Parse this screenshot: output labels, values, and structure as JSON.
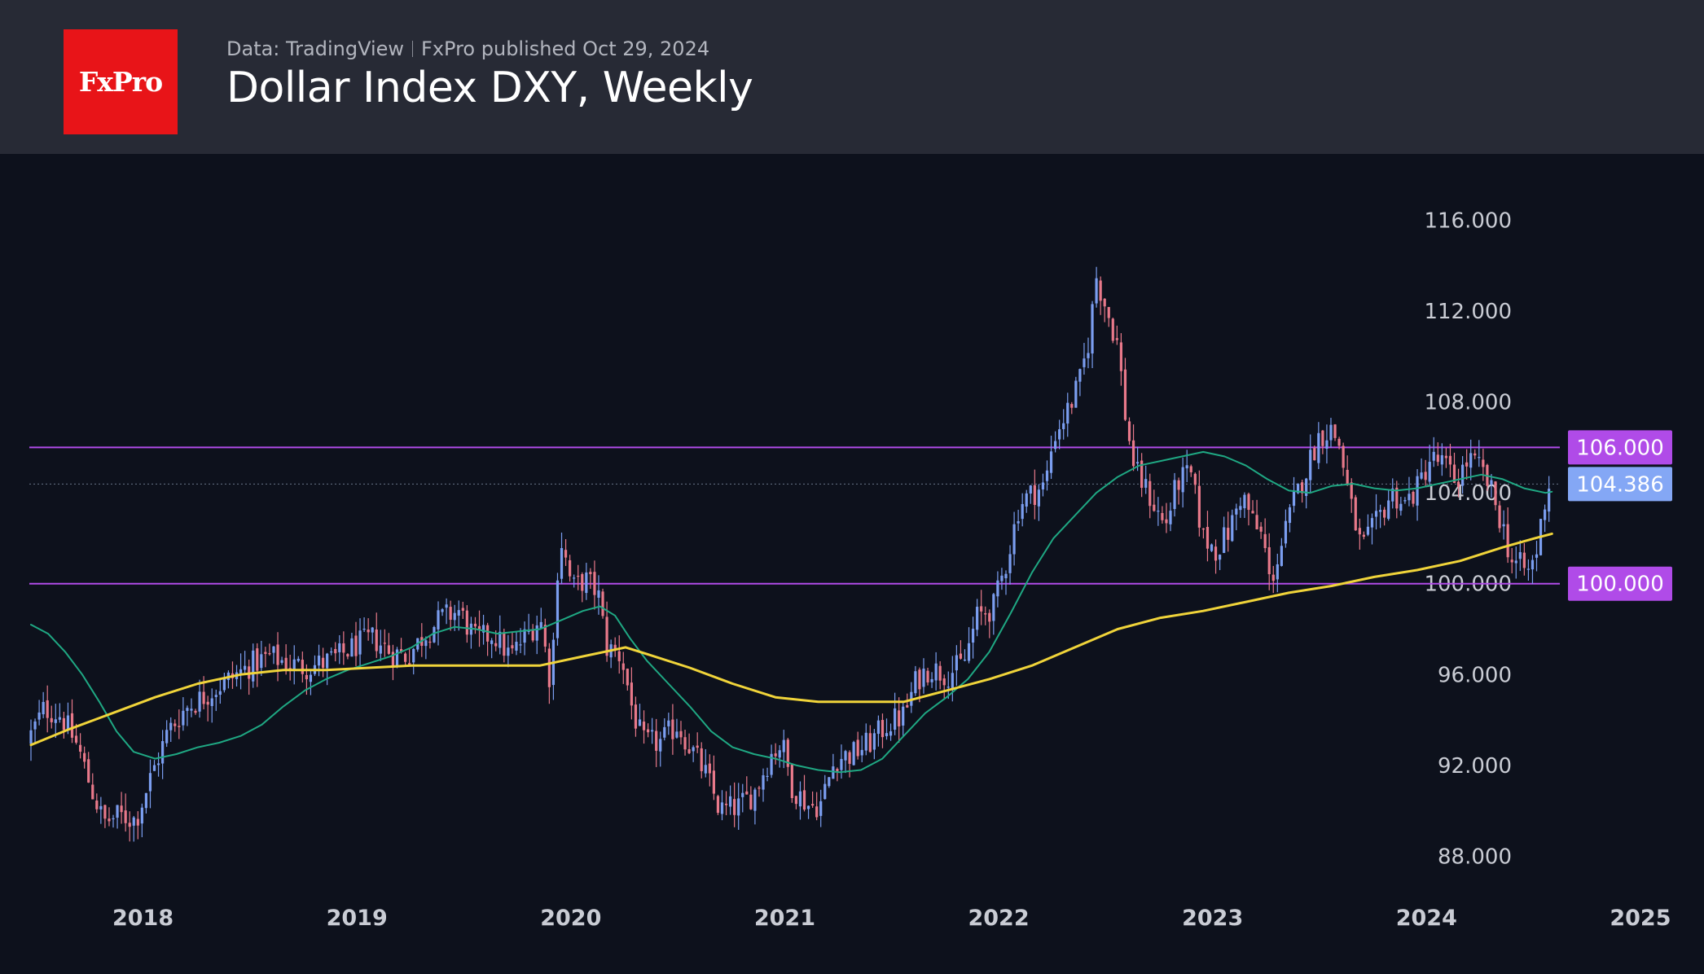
{
  "header": {
    "logo_text": "FxPro",
    "source": "Data: TradingView",
    "published": "FxPro published Oct 29, 2024",
    "title": "Dollar Index DXY, Weekly"
  },
  "colors": {
    "background": "#0d111c",
    "header_bg": "#272a35",
    "logo_bg": "#e81418",
    "candle_up": "#7b9ef0",
    "candle_down": "#e8798a",
    "ma_fast": "#1fa883",
    "ma_slow": "#f0d43a",
    "level_line": "#b04be8",
    "level_label_bg": "#b04be8",
    "current_label_bg": "#84a7f5"
  },
  "chart_data": {
    "type": "candlestick",
    "timeframe": "weekly",
    "y_axis": {
      "range": [
        86.8,
        118.2
      ],
      "ticks": [
        88,
        92,
        96,
        100,
        104,
        108,
        112,
        116
      ],
      "tick_labels": [
        "88.000",
        "92.000",
        "96.000",
        "100.000",
        "104.000",
        "108.000",
        "112.000",
        "116.000"
      ]
    },
    "x_axis": {
      "range": [
        2017.72,
        2025.4
      ],
      "ticks": [
        2018,
        2019,
        2020,
        2021,
        2022,
        2023,
        2024,
        2025
      ],
      "tick_labels": [
        "2018",
        "2019",
        "2020",
        "2021",
        "2022",
        "2023",
        "2024",
        "2025"
      ]
    },
    "price_path": [
      [
        2017.72,
        93.0
      ],
      [
        2017.8,
        94.5
      ],
      [
        2017.88,
        94.2
      ],
      [
        2017.96,
        92.8
      ],
      [
        2018.02,
        91.0
      ],
      [
        2018.08,
        89.5
      ],
      [
        2018.15,
        89.8
      ],
      [
        2018.23,
        89.6
      ],
      [
        2018.3,
        91.5
      ],
      [
        2018.38,
        93.5
      ],
      [
        2018.46,
        94.5
      ],
      [
        2018.54,
        95.0
      ],
      [
        2018.62,
        95.5
      ],
      [
        2018.7,
        96.0
      ],
      [
        2018.78,
        96.5
      ],
      [
        2018.86,
        96.8
      ],
      [
        2018.94,
        96.5
      ],
      [
        2019.02,
        96.3
      ],
      [
        2019.1,
        96.5
      ],
      [
        2019.18,
        96.8
      ],
      [
        2019.26,
        97.3
      ],
      [
        2019.34,
        97.6
      ],
      [
        2019.42,
        97.0
      ],
      [
        2019.5,
        96.8
      ],
      [
        2019.58,
        97.8
      ],
      [
        2019.66,
        98.5
      ],
      [
        2019.74,
        98.8
      ],
      [
        2019.82,
        97.5
      ],
      [
        2019.9,
        97.8
      ],
      [
        2019.98,
        96.8
      ],
      [
        2020.06,
        97.8
      ],
      [
        2020.12,
        98.5
      ],
      [
        2020.17,
        95.5
      ],
      [
        2020.21,
        102.2
      ],
      [
        2020.27,
        99.8
      ],
      [
        2020.33,
        100.2
      ],
      [
        2020.39,
        99.6
      ],
      [
        2020.43,
        97.2
      ],
      [
        2020.5,
        96.8
      ],
      [
        2020.55,
        94.5
      ],
      [
        2020.6,
        93.0
      ],
      [
        2020.68,
        93.0
      ],
      [
        2020.76,
        93.8
      ],
      [
        2020.84,
        92.5
      ],
      [
        2020.9,
        91.5
      ],
      [
        2020.96,
        90.0
      ],
      [
        2021.05,
        90.2
      ],
      [
        2021.12,
        90.8
      ],
      [
        2021.2,
        92.5
      ],
      [
        2021.25,
        93.0
      ],
      [
        2021.3,
        91.0
      ],
      [
        2021.38,
        90.2
      ],
      [
        2021.43,
        90.3
      ],
      [
        2021.5,
        92.3
      ],
      [
        2021.58,
        92.5
      ],
      [
        2021.66,
        93.0
      ],
      [
        2021.74,
        93.8
      ],
      [
        2021.82,
        94.2
      ],
      [
        2021.88,
        95.8
      ],
      [
        2021.94,
        96.3
      ],
      [
        2022.02,
        96.0
      ],
      [
        2022.1,
        96.5
      ],
      [
        2022.16,
        98.5
      ],
      [
        2022.24,
        99.0
      ],
      [
        2022.3,
        101.0
      ],
      [
        2022.36,
        103.5
      ],
      [
        2022.42,
        104.0
      ],
      [
        2022.48,
        104.3
      ],
      [
        2022.52,
        106.5
      ],
      [
        2022.58,
        107.5
      ],
      [
        2022.64,
        108.8
      ],
      [
        2022.68,
        110.5
      ],
      [
        2022.72,
        113.5
      ],
      [
        2022.77,
        112.0
      ],
      [
        2022.82,
        110.5
      ],
      [
        2022.86,
        107.0
      ],
      [
        2022.9,
        105.0
      ],
      [
        2022.96,
        104.0
      ],
      [
        2023.04,
        102.5
      ],
      [
        2023.1,
        104.5
      ],
      [
        2023.16,
        104.8
      ],
      [
        2023.22,
        102.0
      ],
      [
        2023.28,
        101.5
      ],
      [
        2023.34,
        102.3
      ],
      [
        2023.4,
        104.0
      ],
      [
        2023.46,
        102.5
      ],
      [
        2023.5,
        102.0
      ],
      [
        2023.53,
        100.0
      ],
      [
        2023.58,
        101.5
      ],
      [
        2023.64,
        103.5
      ],
      [
        2023.7,
        105.0
      ],
      [
        2023.76,
        106.5
      ],
      [
        2023.82,
        106.8
      ],
      [
        2023.86,
        106.0
      ],
      [
        2023.9,
        103.8
      ],
      [
        2023.96,
        101.5
      ],
      [
        2024.02,
        102.5
      ],
      [
        2024.1,
        104.0
      ],
      [
        2024.16,
        103.5
      ],
      [
        2024.22,
        104.2
      ],
      [
        2024.28,
        105.5
      ],
      [
        2024.34,
        105.3
      ],
      [
        2024.4,
        104.5
      ],
      [
        2024.46,
        105.5
      ],
      [
        2024.52,
        105.0
      ],
      [
        2024.56,
        104.2
      ],
      [
        2024.62,
        102.5
      ],
      [
        2024.66,
        101.0
      ],
      [
        2024.7,
        100.8
      ],
      [
        2024.74,
        100.5
      ],
      [
        2024.78,
        101.5
      ],
      [
        2024.8,
        102.8
      ],
      [
        2024.83,
        104.386
      ]
    ],
    "moving_averages": [
      {
        "color": "#1fa883",
        "points": [
          [
            2017.72,
            98.2
          ],
          [
            2017.8,
            97.8
          ],
          [
            2017.88,
            97.0
          ],
          [
            2017.96,
            96.0
          ],
          [
            2018.04,
            94.8
          ],
          [
            2018.12,
            93.5
          ],
          [
            2018.2,
            92.6
          ],
          [
            2018.3,
            92.3
          ],
          [
            2018.4,
            92.5
          ],
          [
            2018.5,
            92.8
          ],
          [
            2018.6,
            93.0
          ],
          [
            2018.7,
            93.3
          ],
          [
            2018.8,
            93.8
          ],
          [
            2018.9,
            94.6
          ],
          [
            2019.0,
            95.3
          ],
          [
            2019.1,
            95.8
          ],
          [
            2019.2,
            96.2
          ],
          [
            2019.3,
            96.5
          ],
          [
            2019.4,
            96.8
          ],
          [
            2019.5,
            97.2
          ],
          [
            2019.6,
            97.8
          ],
          [
            2019.7,
            98.1
          ],
          [
            2019.8,
            98.0
          ],
          [
            2019.9,
            97.8
          ],
          [
            2020.0,
            97.9
          ],
          [
            2020.1,
            98.0
          ],
          [
            2020.2,
            98.4
          ],
          [
            2020.3,
            98.8
          ],
          [
            2020.38,
            99.0
          ],
          [
            2020.45,
            98.6
          ],
          [
            2020.52,
            97.6
          ],
          [
            2020.6,
            96.6
          ],
          [
            2020.7,
            95.6
          ],
          [
            2020.8,
            94.6
          ],
          [
            2020.9,
            93.5
          ],
          [
            2021.0,
            92.8
          ],
          [
            2021.1,
            92.5
          ],
          [
            2021.2,
            92.3
          ],
          [
            2021.3,
            92.0
          ],
          [
            2021.4,
            91.8
          ],
          [
            2021.5,
            91.7
          ],
          [
            2021.6,
            91.8
          ],
          [
            2021.7,
            92.3
          ],
          [
            2021.8,
            93.3
          ],
          [
            2021.9,
            94.3
          ],
          [
            2022.0,
            95.0
          ],
          [
            2022.1,
            95.8
          ],
          [
            2022.2,
            97.0
          ],
          [
            2022.3,
            98.7
          ],
          [
            2022.4,
            100.5
          ],
          [
            2022.5,
            102.0
          ],
          [
            2022.6,
            103.0
          ],
          [
            2022.7,
            104.0
          ],
          [
            2022.8,
            104.7
          ],
          [
            2022.9,
            105.2
          ],
          [
            2023.0,
            105.4
          ],
          [
            2023.1,
            105.6
          ],
          [
            2023.2,
            105.8
          ],
          [
            2023.3,
            105.6
          ],
          [
            2023.4,
            105.2
          ],
          [
            2023.5,
            104.6
          ],
          [
            2023.6,
            104.1
          ],
          [
            2023.7,
            104.0
          ],
          [
            2023.8,
            104.3
          ],
          [
            2023.9,
            104.4
          ],
          [
            2024.0,
            104.2
          ],
          [
            2024.1,
            104.1
          ],
          [
            2024.2,
            104.2
          ],
          [
            2024.3,
            104.4
          ],
          [
            2024.4,
            104.6
          ],
          [
            2024.5,
            104.8
          ],
          [
            2024.6,
            104.6
          ],
          [
            2024.7,
            104.2
          ],
          [
            2024.8,
            104.0
          ],
          [
            2024.83,
            104.05
          ]
        ]
      },
      {
        "color": "#f0d43a",
        "points": [
          [
            2017.72,
            92.9
          ],
          [
            2017.9,
            93.6
          ],
          [
            2018.1,
            94.3
          ],
          [
            2018.3,
            95.0
          ],
          [
            2018.5,
            95.6
          ],
          [
            2018.7,
            96.0
          ],
          [
            2018.9,
            96.2
          ],
          [
            2019.1,
            96.2
          ],
          [
            2019.3,
            96.3
          ],
          [
            2019.5,
            96.4
          ],
          [
            2019.7,
            96.4
          ],
          [
            2019.9,
            96.4
          ],
          [
            2020.1,
            96.4
          ],
          [
            2020.3,
            96.8
          ],
          [
            2020.5,
            97.2
          ],
          [
            2020.6,
            96.9
          ],
          [
            2020.8,
            96.3
          ],
          [
            2021.0,
            95.6
          ],
          [
            2021.2,
            95.0
          ],
          [
            2021.4,
            94.8
          ],
          [
            2021.6,
            94.8
          ],
          [
            2021.8,
            94.8
          ],
          [
            2022.0,
            95.3
          ],
          [
            2022.2,
            95.8
          ],
          [
            2022.4,
            96.4
          ],
          [
            2022.6,
            97.2
          ],
          [
            2022.8,
            98.0
          ],
          [
            2023.0,
            98.5
          ],
          [
            2023.2,
            98.8
          ],
          [
            2023.4,
            99.2
          ],
          [
            2023.6,
            99.6
          ],
          [
            2023.8,
            99.9
          ],
          [
            2024.0,
            100.3
          ],
          [
            2024.2,
            100.6
          ],
          [
            2024.4,
            101.0
          ],
          [
            2024.6,
            101.6
          ],
          [
            2024.75,
            102.0
          ],
          [
            2024.83,
            102.2
          ]
        ]
      }
    ],
    "levels": [
      {
        "value": 106.0,
        "label": "106.000"
      },
      {
        "value": 100.0,
        "label": "100.000"
      }
    ],
    "current_price": {
      "value": 104.386,
      "label": "104.386"
    }
  }
}
